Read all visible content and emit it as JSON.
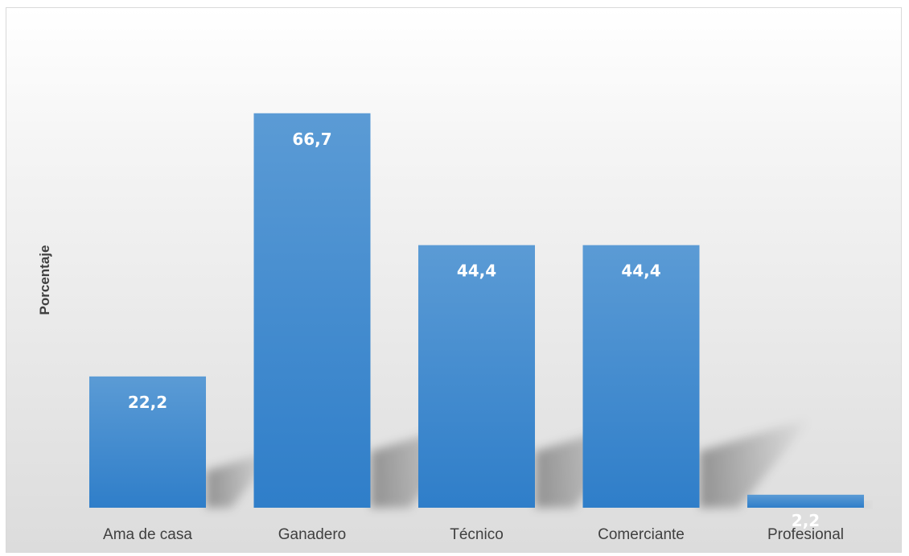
{
  "chart_data": {
    "type": "bar",
    "title": "",
    "xlabel": "",
    "ylabel": "Porcentaje",
    "categories": [
      "Ama de casa",
      "Ganadero",
      "Técnico",
      "Comerciante",
      "Profesional"
    ],
    "values": [
      22.2,
      66.7,
      44.4,
      44.4,
      2.2
    ],
    "data_labels": [
      "22,2",
      "66,7",
      "44,4",
      "44,4",
      "2,2"
    ],
    "ylim": [
      0,
      80
    ],
    "grid": false,
    "legend": "none",
    "colors": {
      "bar_top": "#5b9bd5",
      "bar_bottom": "#2f7ec9",
      "label": "#ffffff",
      "text": "#404040"
    }
  }
}
